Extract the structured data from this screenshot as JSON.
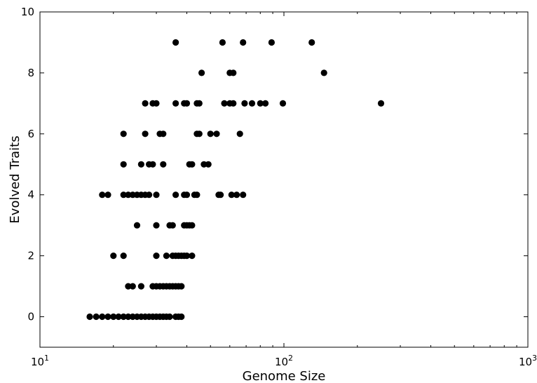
{
  "chart_data": {
    "type": "scatter",
    "xlabel": "Genome Size",
    "ylabel": "Evolved Traits",
    "xscale": "log",
    "xlim": [
      10,
      1000
    ],
    "ylim": [
      -1,
      10
    ],
    "x_ticks": [
      {
        "value": 10,
        "label_base": "10",
        "label_exp": "1"
      },
      {
        "value": 100,
        "label_base": "10",
        "label_exp": "2"
      },
      {
        "value": 1000,
        "label_base": "10",
        "label_exp": "3"
      }
    ],
    "y_ticks": [
      0,
      2,
      4,
      6,
      8,
      10
    ],
    "grid": false,
    "marker_color": "#000000",
    "points": [
      {
        "x": 36,
        "y": 9
      },
      {
        "x": 56,
        "y": 9
      },
      {
        "x": 68,
        "y": 9
      },
      {
        "x": 89,
        "y": 9
      },
      {
        "x": 130,
        "y": 9
      },
      {
        "x": 46,
        "y": 8
      },
      {
        "x": 60,
        "y": 8
      },
      {
        "x": 62,
        "y": 8
      },
      {
        "x": 146,
        "y": 8
      },
      {
        "x": 27,
        "y": 7
      },
      {
        "x": 29,
        "y": 7
      },
      {
        "x": 30,
        "y": 7
      },
      {
        "x": 36,
        "y": 7
      },
      {
        "x": 39,
        "y": 7
      },
      {
        "x": 40,
        "y": 7
      },
      {
        "x": 44,
        "y": 7
      },
      {
        "x": 45,
        "y": 7
      },
      {
        "x": 57,
        "y": 7
      },
      {
        "x": 60,
        "y": 7
      },
      {
        "x": 62,
        "y": 7
      },
      {
        "x": 69,
        "y": 7
      },
      {
        "x": 74,
        "y": 7
      },
      {
        "x": 80,
        "y": 7
      },
      {
        "x": 84,
        "y": 7
      },
      {
        "x": 99,
        "y": 7
      },
      {
        "x": 250,
        "y": 7
      },
      {
        "x": 22,
        "y": 6
      },
      {
        "x": 27,
        "y": 6
      },
      {
        "x": 31,
        "y": 6
      },
      {
        "x": 32,
        "y": 6
      },
      {
        "x": 44,
        "y": 6
      },
      {
        "x": 45,
        "y": 6
      },
      {
        "x": 50,
        "y": 6
      },
      {
        "x": 53,
        "y": 6
      },
      {
        "x": 66,
        "y": 6
      },
      {
        "x": 22,
        "y": 5
      },
      {
        "x": 26,
        "y": 5
      },
      {
        "x": 28,
        "y": 5
      },
      {
        "x": 29,
        "y": 5
      },
      {
        "x": 32,
        "y": 5
      },
      {
        "x": 41,
        "y": 5
      },
      {
        "x": 42,
        "y": 5
      },
      {
        "x": 47,
        "y": 5
      },
      {
        "x": 49,
        "y": 5
      },
      {
        "x": 18,
        "y": 4
      },
      {
        "x": 19,
        "y": 4
      },
      {
        "x": 22,
        "y": 4
      },
      {
        "x": 23,
        "y": 4
      },
      {
        "x": 24,
        "y": 4
      },
      {
        "x": 25,
        "y": 4
      },
      {
        "x": 26,
        "y": 4
      },
      {
        "x": 27,
        "y": 4
      },
      {
        "x": 28,
        "y": 4
      },
      {
        "x": 30,
        "y": 4
      },
      {
        "x": 36,
        "y": 4
      },
      {
        "x": 39,
        "y": 4
      },
      {
        "x": 40,
        "y": 4
      },
      {
        "x": 43,
        "y": 4
      },
      {
        "x": 44,
        "y": 4
      },
      {
        "x": 54,
        "y": 4
      },
      {
        "x": 55,
        "y": 4
      },
      {
        "x": 61,
        "y": 4
      },
      {
        "x": 64,
        "y": 4
      },
      {
        "x": 68,
        "y": 4
      },
      {
        "x": 25,
        "y": 3
      },
      {
        "x": 30,
        "y": 3
      },
      {
        "x": 34,
        "y": 3
      },
      {
        "x": 35,
        "y": 3
      },
      {
        "x": 39,
        "y": 3
      },
      {
        "x": 40,
        "y": 3
      },
      {
        "x": 41,
        "y": 3
      },
      {
        "x": 42,
        "y": 3
      },
      {
        "x": 20,
        "y": 2
      },
      {
        "x": 22,
        "y": 2
      },
      {
        "x": 30,
        "y": 2
      },
      {
        "x": 33,
        "y": 2
      },
      {
        "x": 35,
        "y": 2
      },
      {
        "x": 36,
        "y": 2
      },
      {
        "x": 37,
        "y": 2
      },
      {
        "x": 38,
        "y": 2
      },
      {
        "x": 39,
        "y": 2
      },
      {
        "x": 40,
        "y": 2
      },
      {
        "x": 42,
        "y": 2
      },
      {
        "x": 23,
        "y": 1
      },
      {
        "x": 24,
        "y": 1
      },
      {
        "x": 26,
        "y": 1
      },
      {
        "x": 29,
        "y": 1
      },
      {
        "x": 30,
        "y": 1
      },
      {
        "x": 31,
        "y": 1
      },
      {
        "x": 32,
        "y": 1
      },
      {
        "x": 33,
        "y": 1
      },
      {
        "x": 34,
        "y": 1
      },
      {
        "x": 35,
        "y": 1
      },
      {
        "x": 36,
        "y": 1
      },
      {
        "x": 37,
        "y": 1
      },
      {
        "x": 38,
        "y": 1
      },
      {
        "x": 16,
        "y": 0
      },
      {
        "x": 17,
        "y": 0
      },
      {
        "x": 18,
        "y": 0
      },
      {
        "x": 19,
        "y": 0
      },
      {
        "x": 20,
        "y": 0
      },
      {
        "x": 21,
        "y": 0
      },
      {
        "x": 22,
        "y": 0
      },
      {
        "x": 23,
        "y": 0
      },
      {
        "x": 24,
        "y": 0
      },
      {
        "x": 25,
        "y": 0
      },
      {
        "x": 26,
        "y": 0
      },
      {
        "x": 27,
        "y": 0
      },
      {
        "x": 28,
        "y": 0
      },
      {
        "x": 29,
        "y": 0
      },
      {
        "x": 30,
        "y": 0
      },
      {
        "x": 31,
        "y": 0
      },
      {
        "x": 32,
        "y": 0
      },
      {
        "x": 33,
        "y": 0
      },
      {
        "x": 34,
        "y": 0
      },
      {
        "x": 36,
        "y": 0
      },
      {
        "x": 37,
        "y": 0
      },
      {
        "x": 38,
        "y": 0
      }
    ]
  }
}
